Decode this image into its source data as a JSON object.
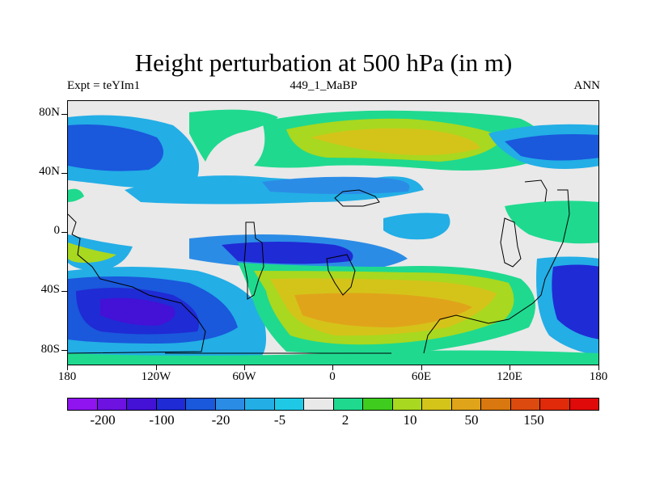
{
  "title": "Height perturbation at 500 hPa (in m)",
  "subtitle_left": "Expt = teYIm1",
  "subtitle_center": "449_1_MaBP",
  "subtitle_right": "ANN",
  "y_axis_labels": [
    "80N",
    "40N",
    "0",
    "40S",
    "80S"
  ],
  "x_axis_labels": [
    "180",
    "120W",
    "60W",
    "0",
    "60E",
    "120E",
    "180"
  ],
  "colorbar": {
    "colors": [
      "#8f14f0",
      "#6d12e0",
      "#4411d6",
      "#1f2bd4",
      "#1a58dc",
      "#2b8ce6",
      "#23aee6",
      "#1fc9e6",
      "#e9e9e9",
      "#1fd98f",
      "#3fcc1e",
      "#a8d81f",
      "#d4c41a",
      "#e0a41a",
      "#d9780f",
      "#dc4a0f",
      "#e02a0a",
      "#e00a0a"
    ],
    "labels": [
      "-200",
      "-100",
      "-20",
      "-5",
      "2",
      "10",
      "50",
      "150"
    ]
  },
  "colors": {
    "background": "#e9e9e9",
    "coast": "#000000"
  }
}
